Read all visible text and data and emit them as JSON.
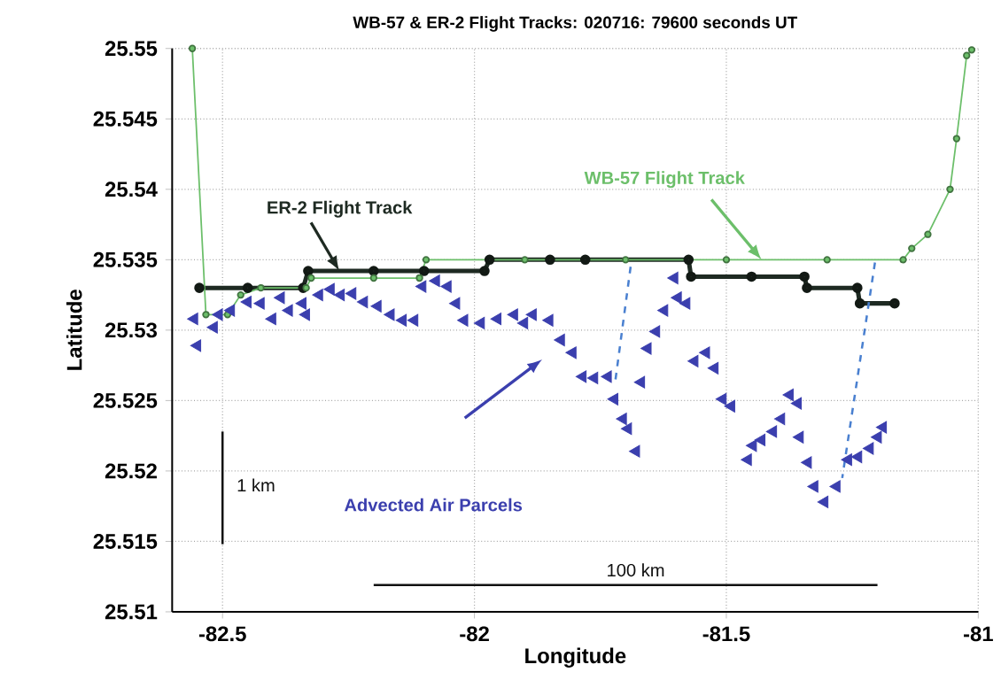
{
  "chart_data": {
    "type": "scatter",
    "title": "WB-57 & ER-2 Flight Tracks: 020716: 79600 seconds UT",
    "xlabel": "Longitude",
    "ylabel": "Latitude",
    "xlim": [
      -82.6,
      -81
    ],
    "ylim": [
      25.51,
      25.55
    ],
    "xticks": [
      -82.5,
      -82,
      -81.5,
      -81
    ],
    "yticks": [
      25.51,
      25.515,
      25.52,
      25.525,
      25.53,
      25.535,
      25.54,
      25.545,
      25.55
    ],
    "grid": true,
    "series": [
      {
        "type": "line",
        "color": "#1e2a22",
        "marker": "circle",
        "line_style": "solid",
        "x": [
          -82.546,
          -82.45,
          -82.34,
          -82.33,
          -82.2,
          -82.1,
          -81.98,
          -81.97,
          -81.85,
          -81.78,
          -81.575,
          -81.57,
          -81.45,
          -81.345,
          -81.34,
          -81.24,
          -81.235,
          -81.166
        ],
        "values": [
          25.533,
          25.533,
          25.533,
          25.5342,
          25.5342,
          25.5342,
          25.5342,
          25.535,
          25.535,
          25.535,
          25.535,
          25.5338,
          25.5338,
          25.5338,
          25.533,
          25.533,
          25.5319,
          25.5319
        ]
      },
      {
        "type": "line",
        "color": "#6cbf6a",
        "marker": "circle",
        "line_style": "solid",
        "x": [
          -82.56,
          -82.533,
          -82.49,
          -82.464,
          -82.424,
          -82.334,
          -82.324,
          -82.2,
          -82.109,
          -82.096,
          -81.9,
          -81.7,
          -81.5,
          -81.3,
          -81.149,
          -81.132,
          -81.1,
          -81.056,
          -81.043,
          -81.023,
          -81.013
        ],
        "values": [
          25.55,
          25.5311,
          25.5311,
          25.5325,
          25.533,
          25.533,
          25.5337,
          25.5337,
          25.5337,
          25.535,
          25.535,
          25.535,
          25.535,
          25.535,
          25.535,
          25.5358,
          25.5368,
          25.54,
          25.5436,
          25.5495,
          25.5499
        ]
      },
      {
        "color": "#3b3fae",
        "marker": "triangle",
        "x": [
          -82.556,
          -82.55,
          -82.517,
          -82.507,
          -82.483,
          -82.45,
          -82.424,
          -82.401,
          -82.384,
          -82.368,
          -82.341,
          -82.334,
          -82.308,
          -82.285,
          -82.265,
          -82.242,
          -82.219,
          -82.192,
          -82.166,
          -82.142,
          -82.119,
          -82.103,
          -82.076,
          -82.053,
          -82.036,
          -82.02,
          -81.987,
          -81.954,
          -81.921,
          -81.901,
          -81.884,
          -81.851,
          -81.828,
          -81.805,
          -81.785,
          -81.762,
          -81.735,
          -81.722,
          -81.705,
          -81.695,
          -81.679,
          -81.669,
          -81.656,
          -81.639,
          -81.623,
          -81.596,
          -81.603,
          -81.579,
          -81.563,
          -81.54,
          -81.523,
          -81.507,
          -81.49,
          -81.457,
          -81.447,
          -81.43,
          -81.407,
          -81.391,
          -81.374,
          -81.358,
          -81.354,
          -81.338,
          -81.325,
          -81.305,
          -81.281,
          -81.258,
          -81.238,
          -81.215,
          -81.199,
          -81.189
        ],
        "values": [
          25.5308,
          25.5289,
          25.5302,
          25.5311,
          25.5314,
          25.532,
          25.5319,
          25.5308,
          25.5323,
          25.5314,
          25.5319,
          25.5311,
          25.5325,
          25.5329,
          25.5325,
          25.5326,
          25.532,
          25.5317,
          25.5311,
          25.5307,
          25.5307,
          25.5331,
          25.5335,
          25.5331,
          25.5319,
          25.5307,
          25.5305,
          25.5308,
          25.5311,
          25.5305,
          25.5311,
          25.5307,
          25.5293,
          25.5284,
          25.5267,
          25.5266,
          25.5267,
          25.5251,
          25.5237,
          25.523,
          25.5214,
          25.5263,
          25.5287,
          25.5299,
          25.5314,
          25.5323,
          25.5337,
          25.5319,
          25.5278,
          25.5284,
          25.5273,
          25.5251,
          25.5246,
          25.5208,
          25.5218,
          25.5222,
          25.5228,
          25.5237,
          25.5254,
          25.5248,
          25.5224,
          25.5206,
          25.5189,
          25.5178,
          25.5189,
          25.5208,
          25.521,
          25.5216,
          25.5224,
          25.5231
        ]
      },
      {
        "type": "line",
        "color": "#4a80d0",
        "marker": "none",
        "line_style": "dashed",
        "x": [
          -81.69,
          -81.72
        ],
        "values": [
          25.5345,
          25.5265
        ]
      },
      {
        "type": "line",
        "color": "#4a80d0",
        "marker": "none",
        "line_style": "dashed",
        "x": [
          -81.205,
          -81.27
        ],
        "values": [
          25.5348,
          25.5195
        ]
      },
      {
        "type": "line",
        "color": "#111111",
        "marker": "none",
        "line_style": "solid",
        "x": [
          -82.5,
          -82.5
        ],
        "values": [
          25.5148,
          25.5228
        ]
      },
      {
        "type": "line",
        "color": "#111111",
        "marker": "none",
        "line_style": "solid",
        "x": [
          -82.2,
          -81.2
        ],
        "values": [
          25.5119,
          25.5119
        ]
      }
    ],
    "annotations": [
      {
        "text": "ER-2 Flight Track",
        "x": -82.268,
        "y": 25.5342
      },
      {
        "text": "WB-57 Flight Track",
        "x": -81.43,
        "y": 25.535
      },
      "Advected Air Parcels",
      {
        "text": "1 km",
        "x": -82.5,
        "y": 25.519
      },
      {
        "text": "100 km",
        "x": -81.68,
        "y": 25.5119
      }
    ]
  }
}
